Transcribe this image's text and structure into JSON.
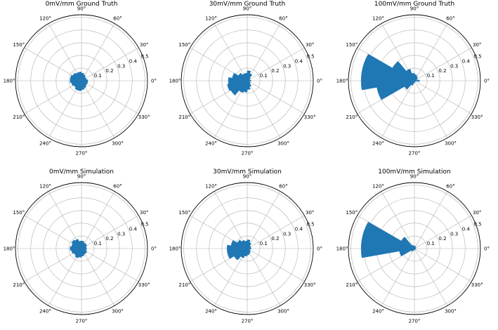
{
  "chart_data": [
    {
      "type": "polar-bar",
      "title": "0mV/mm Ground Truth",
      "theta_ticks": [
        "0°",
        "30°",
        "60°",
        "90°",
        "120°",
        "150°",
        "180°",
        "210°",
        "240°",
        "270°",
        "300°",
        "330°"
      ],
      "r_ticks": [
        "0.1",
        "0.2",
        "0.3",
        "0.4",
        "0.5"
      ],
      "rmax": 0.52,
      "color": "#1f77b4",
      "bin_width_deg": 20,
      "bin_centers_deg": [
        0,
        20,
        40,
        60,
        80,
        100,
        120,
        140,
        160,
        180,
        200,
        220,
        240,
        260,
        280,
        300,
        320,
        340
      ],
      "values": [
        0.05,
        0.04,
        0.04,
        0.05,
        0.06,
        0.07,
        0.07,
        0.08,
        0.09,
        0.09,
        0.08,
        0.07,
        0.08,
        0.08,
        0.07,
        0.06,
        0.05,
        0.05
      ]
    },
    {
      "type": "polar-bar",
      "title": "30mV/mm Ground Truth",
      "theta_ticks": [
        "0°",
        "30°",
        "60°",
        "90°",
        "120°",
        "150°",
        "180°",
        "210°",
        "240°",
        "270°",
        "300°",
        "330°"
      ],
      "r_ticks": [
        "0.1",
        "0.2",
        "0.3",
        "0.4",
        "0.5"
      ],
      "rmax": 0.52,
      "color": "#1f77b4",
      "bin_width_deg": 20,
      "bin_centers_deg": [
        0,
        20,
        40,
        60,
        80,
        100,
        120,
        140,
        160,
        180,
        200,
        220,
        240,
        260,
        280,
        300,
        320,
        340
      ],
      "values": [
        0.03,
        0.02,
        0.03,
        0.06,
        0.08,
        0.06,
        0.06,
        0.08,
        0.12,
        0.15,
        0.16,
        0.15,
        0.1,
        0.09,
        0.07,
        0.05,
        0.03,
        0.02
      ]
    },
    {
      "type": "polar-bar",
      "title": "100mV/mm Ground Truth",
      "theta_ticks": [
        "0°",
        "30°",
        "60°",
        "90°",
        "120°",
        "150°",
        "180°",
        "210°",
        "240°",
        "270°",
        "300°",
        "330°"
      ],
      "r_ticks": [
        "0.1",
        "0.2",
        "0.3",
        "0.4",
        "0.5"
      ],
      "rmax": 0.52,
      "color": "#1f77b4",
      "bin_width_deg": 20,
      "bin_centers_deg": [
        0,
        20,
        40,
        60,
        80,
        100,
        120,
        140,
        160,
        180,
        200,
        220,
        240,
        260,
        280,
        300,
        320,
        340
      ],
      "values": [
        0.04,
        0.02,
        0.03,
        0.04,
        0.05,
        0.06,
        0.1,
        0.2,
        0.42,
        0.42,
        0.3,
        0.09,
        0.04,
        0.02,
        0.01,
        0.01,
        0.01,
        0.01
      ]
    },
    {
      "type": "polar-bar",
      "title": "0mV/mm Simulation",
      "theta_ticks": [
        "0°",
        "30°",
        "60°",
        "90°",
        "120°",
        "150°",
        "180°",
        "210°",
        "240°",
        "270°",
        "300°",
        "330°"
      ],
      "r_ticks": [
        "0.1",
        "0.2",
        "0.3",
        "0.4",
        "0.5"
      ],
      "rmax": 0.52,
      "color": "#1f77b4",
      "bin_width_deg": 20,
      "bin_centers_deg": [
        0,
        20,
        40,
        60,
        80,
        100,
        120,
        140,
        160,
        180,
        200,
        220,
        240,
        260,
        280,
        300,
        320,
        340
      ],
      "values": [
        0.04,
        0.04,
        0.05,
        0.05,
        0.06,
        0.06,
        0.08,
        0.09,
        0.08,
        0.09,
        0.08,
        0.07,
        0.08,
        0.07,
        0.06,
        0.05,
        0.05,
        0.04
      ]
    },
    {
      "type": "polar-bar",
      "title": "30mV/mm Simulation",
      "theta_ticks": [
        "0°",
        "30°",
        "60°",
        "90°",
        "120°",
        "150°",
        "180°",
        "210°",
        "240°",
        "270°",
        "300°",
        "330°"
      ],
      "r_ticks": [
        "0.1",
        "0.2",
        "0.3",
        "0.4",
        "0.5"
      ],
      "rmax": 0.52,
      "color": "#1f77b4",
      "bin_width_deg": 20,
      "bin_centers_deg": [
        0,
        20,
        40,
        60,
        80,
        100,
        120,
        140,
        160,
        180,
        200,
        220,
        240,
        260,
        280,
        300,
        320,
        340
      ],
      "values": [
        0.03,
        0.03,
        0.03,
        0.05,
        0.07,
        0.06,
        0.07,
        0.09,
        0.13,
        0.16,
        0.16,
        0.12,
        0.08,
        0.06,
        0.05,
        0.04,
        0.03,
        0.02
      ]
    },
    {
      "type": "polar-bar",
      "title": "100mV/mm Simulation",
      "theta_ticks": [
        "0°",
        "30°",
        "60°",
        "90°",
        "120°",
        "150°",
        "180°",
        "210°",
        "240°",
        "270°",
        "300°",
        "330°"
      ],
      "r_ticks": [
        "0.1",
        "0.2",
        "0.3",
        "0.4",
        "0.5"
      ],
      "rmax": 0.52,
      "color": "#1f77b4",
      "bin_width_deg": 20,
      "bin_centers_deg": [
        0,
        20,
        40,
        60,
        80,
        100,
        120,
        140,
        160,
        180,
        200,
        220,
        240,
        260,
        280,
        300,
        320,
        340
      ],
      "values": [
        0.01,
        0.01,
        0.01,
        0.02,
        0.02,
        0.02,
        0.03,
        0.12,
        0.42,
        0.42,
        0.12,
        0.03,
        0.02,
        0.01,
        0.01,
        0.01,
        0.01,
        0.01
      ]
    }
  ]
}
